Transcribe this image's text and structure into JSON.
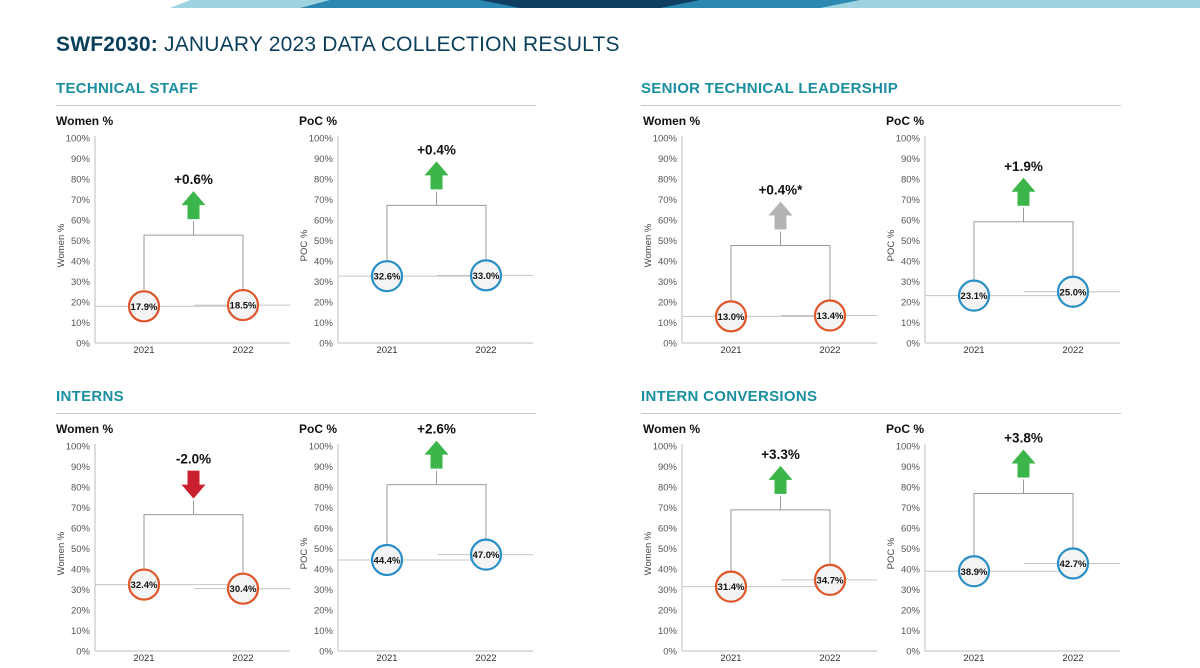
{
  "page": {
    "title_brand": "SWF2030:",
    "title_rest": " JANUARY 2023 DATA COLLECTION RESULTS"
  },
  "colors": {
    "header_teal": "#1b8fa0",
    "title_navy": "#0a3f5c",
    "women_circle": "#e0562b",
    "poc_circle": "#2a8fc6",
    "up_arrow": "#3cb54a",
    "down_arrow": "#c8202f",
    "neutral_arrow": "#b4b4b4",
    "band": [
      "#0f3e60",
      "#2b88b0",
      "#9fd3df"
    ]
  },
  "sections": [
    {
      "id": "technical-staff",
      "title": "TECHNICAL STAFF"
    },
    {
      "id": "senior-technical-leadership",
      "title": "SENIOR TECHNICAL LEADERSHIP"
    },
    {
      "id": "interns",
      "title": "INTERNS"
    },
    {
      "id": "intern-conversions",
      "title": "INTERN CONVERSIONS"
    }
  ],
  "chart_data": [
    {
      "section": "TECHNICAL STAFF",
      "type": "scatter",
      "title": "Women %",
      "ylabel": "Women %",
      "ylim": [
        0,
        100
      ],
      "yticks": [
        "0%",
        "10%",
        "20%",
        "30%",
        "40%",
        "50%",
        "60%",
        "70%",
        "80%",
        "90%",
        "100%"
      ],
      "categories": [
        "2021",
        "2022"
      ],
      "values": [
        17.9,
        18.5
      ],
      "labels": [
        "17.9%",
        "18.5%"
      ],
      "change": "+0.6%",
      "trend": "up",
      "circle": "women"
    },
    {
      "section": "TECHNICAL STAFF",
      "type": "scatter",
      "title": "PoC %",
      "ylabel": "POC %",
      "ylim": [
        0,
        100
      ],
      "yticks": [
        "0%",
        "10%",
        "20%",
        "30%",
        "40%",
        "50%",
        "60%",
        "70%",
        "80%",
        "90%",
        "100%"
      ],
      "categories": [
        "2021",
        "2022"
      ],
      "values": [
        32.6,
        33.0
      ],
      "labels": [
        "32.6%",
        "33.0%"
      ],
      "change": "+0.4%",
      "trend": "up",
      "circle": "poc"
    },
    {
      "section": "SENIOR TECHNICAL LEADERSHIP",
      "type": "scatter",
      "title": "Women %",
      "ylabel": "Women %",
      "ylim": [
        0,
        100
      ],
      "yticks": [
        "0%",
        "10%",
        "20%",
        "30%",
        "40%",
        "50%",
        "60%",
        "70%",
        "80%",
        "90%",
        "100%"
      ],
      "categories": [
        "2021",
        "2022"
      ],
      "values": [
        13.0,
        13.4
      ],
      "labels": [
        "13.0%",
        "13.4%"
      ],
      "change": "+0.4%*",
      "trend": "neutral",
      "circle": "women"
    },
    {
      "section": "SENIOR TECHNICAL LEADERSHIP",
      "type": "scatter",
      "title": "PoC %",
      "ylabel": "POC %",
      "ylim": [
        0,
        100
      ],
      "yticks": [
        "0%",
        "10%",
        "20%",
        "30%",
        "40%",
        "50%",
        "60%",
        "70%",
        "80%",
        "90%",
        "100%"
      ],
      "categories": [
        "2021",
        "2022"
      ],
      "values": [
        23.1,
        25.0
      ],
      "labels": [
        "23.1%",
        "25.0%"
      ],
      "change": "+1.9%",
      "trend": "up",
      "circle": "poc"
    },
    {
      "section": "INTERNS",
      "type": "scatter",
      "title": "Women %",
      "ylabel": "Women %",
      "ylim": [
        0,
        100
      ],
      "yticks": [
        "0%",
        "10%",
        "20%",
        "30%",
        "40%",
        "50%",
        "60%",
        "70%",
        "80%",
        "90%",
        "100%"
      ],
      "categories": [
        "2021",
        "2022"
      ],
      "values": [
        32.4,
        30.4
      ],
      "labels": [
        "32.4%",
        "30.4%"
      ],
      "change": "-2.0%",
      "trend": "down",
      "circle": "women"
    },
    {
      "section": "INTERNS",
      "type": "scatter",
      "title": "PoC %",
      "ylabel": "POC %",
      "ylim": [
        0,
        100
      ],
      "yticks": [
        "0%",
        "10%",
        "20%",
        "30%",
        "40%",
        "50%",
        "60%",
        "70%",
        "80%",
        "90%",
        "100%"
      ],
      "categories": [
        "2021",
        "2022"
      ],
      "values": [
        44.4,
        47.0
      ],
      "labels": [
        "44.4%",
        "47.0%"
      ],
      "change": "+2.6%",
      "trend": "up",
      "circle": "poc"
    },
    {
      "section": "INTERN CONVERSIONS",
      "type": "scatter",
      "title": "Women %",
      "ylabel": "Women %",
      "ylim": [
        0,
        100
      ],
      "yticks": [
        "0%",
        "10%",
        "20%",
        "30%",
        "40%",
        "50%",
        "60%",
        "70%",
        "80%",
        "90%",
        "100%"
      ],
      "categories": [
        "2021",
        "2022"
      ],
      "values": [
        31.4,
        34.7
      ],
      "labels": [
        "31.4%",
        "34.7%"
      ],
      "change": "+3.3%",
      "trend": "up",
      "circle": "women"
    },
    {
      "section": "INTERN CONVERSIONS",
      "type": "scatter",
      "title": "PoC %",
      "ylabel": "POC %",
      "ylim": [
        0,
        100
      ],
      "yticks": [
        "0%",
        "10%",
        "20%",
        "30%",
        "40%",
        "50%",
        "60%",
        "70%",
        "80%",
        "90%",
        "100%"
      ],
      "categories": [
        "2021",
        "2022"
      ],
      "values": [
        38.9,
        42.7
      ],
      "labels": [
        "38.9%",
        "42.7%"
      ],
      "change": "+3.8%",
      "trend": "up",
      "circle": "poc"
    }
  ]
}
